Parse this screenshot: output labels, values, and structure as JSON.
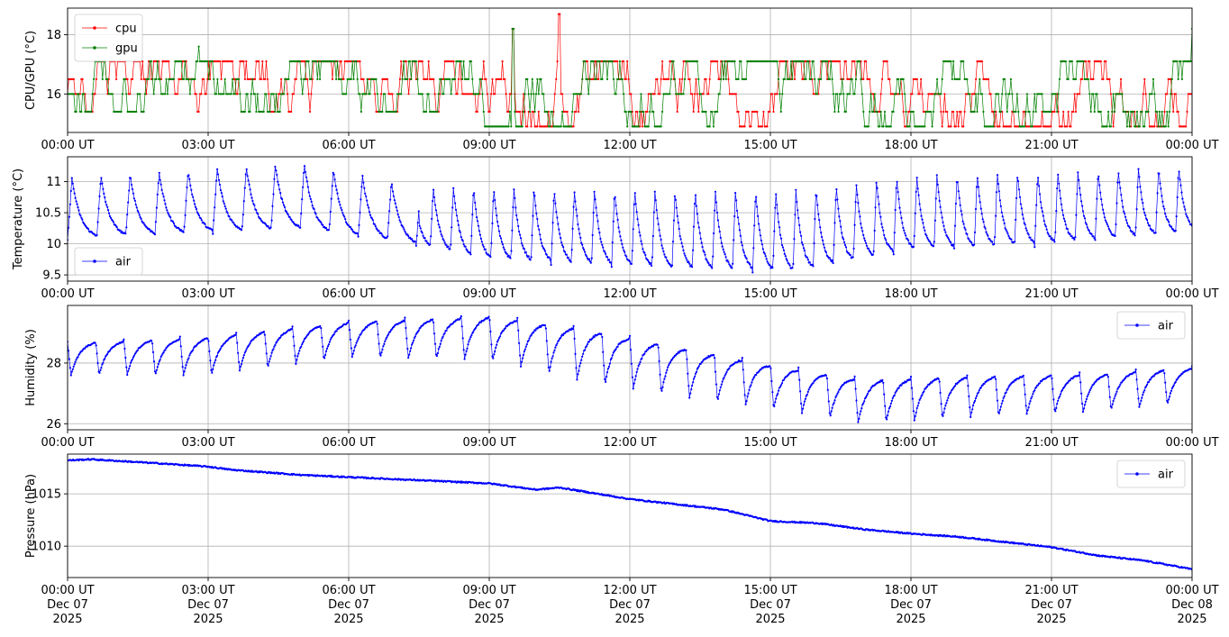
{
  "chart_data": [
    {
      "type": "line",
      "ylabel": "CPU/GPU (°C)",
      "ylim": [
        14.7,
        18.9
      ],
      "yticks": [
        16,
        18
      ],
      "xlim_hours": [
        0,
        24
      ],
      "xtick_labels": [
        "00:00 UT",
        "03:00 UT",
        "06:00 UT",
        "09:00 UT",
        "12:00 UT",
        "15:00 UT",
        "18:00 UT",
        "21:00 UT",
        "00:00 UT"
      ],
      "grid": true,
      "legend": "upper-left",
      "series": [
        {
          "name": "cpu",
          "color": "#ff0000",
          "pattern": "steps",
          "levels": [
            14.9,
            15.4,
            16.0,
            16.5,
            17.1
          ],
          "spikes": [
            [
              9.5,
              18.2
            ],
            [
              10.5,
              18.7
            ]
          ]
        },
        {
          "name": "gpu",
          "color": "#008000",
          "pattern": "steps",
          "levels": [
            14.9,
            15.4,
            16.0,
            16.5,
            17.1
          ],
          "spikes": [
            [
              2.8,
              17.6
            ],
            [
              9.5,
              18.2
            ],
            [
              24.0,
              18.2
            ]
          ]
        }
      ]
    },
    {
      "type": "line",
      "ylabel": "Temperature (°C)",
      "ylim": [
        9.4,
        11.4
      ],
      "yticks": [
        9.5,
        10.0,
        10.5,
        11.0
      ],
      "xlim_hours": [
        0,
        24
      ],
      "xtick_labels": [
        "00:00 UT",
        "03:00 UT",
        "06:00 UT",
        "09:00 UT",
        "12:00 UT",
        "15:00 UT",
        "18:00 UT",
        "21:00 UT",
        "00:00 UT"
      ],
      "grid": true,
      "legend": "lower-left",
      "series": [
        {
          "name": "air",
          "color": "#0000ff",
          "pattern": "sawtooth",
          "cycles_per_hour": 1.0,
          "min_start": 10.05,
          "max_start": 11.1,
          "anchors": [
            [
              0,
              10.05,
              11.05
            ],
            [
              5,
              10.2,
              11.3
            ],
            [
              7.5,
              9.95,
              10.9
            ],
            [
              9,
              9.7,
              10.9
            ],
            [
              13,
              9.55,
              10.85
            ],
            [
              15.5,
              9.5,
              10.85
            ],
            [
              18,
              9.85,
              11.1
            ],
            [
              21,
              9.95,
              11.15
            ],
            [
              24,
              10.15,
              11.25
            ]
          ]
        }
      ]
    },
    {
      "type": "line",
      "ylabel": "Humidity (%)",
      "ylim": [
        25.8,
        29.9
      ],
      "yticks": [
        26,
        28
      ],
      "xlim_hours": [
        0,
        24
      ],
      "xtick_labels": [
        "00:00 UT",
        "03:00 UT",
        "06:00 UT",
        "09:00 UT",
        "12:00 UT",
        "15:00 UT",
        "18:00 UT",
        "21:00 UT",
        "00:00 UT"
      ],
      "grid": true,
      "legend": "upper-right",
      "series": [
        {
          "name": "air",
          "color": "#0000ff",
          "pattern": "sawtooth-inverse",
          "anchors": [
            [
              0,
              27.6,
              28.7
            ],
            [
              3,
              27.6,
              28.9
            ],
            [
              6,
              28.2,
              29.4
            ],
            [
              9,
              28.1,
              29.6
            ],
            [
              11,
              27.4,
              29.2
            ],
            [
              13,
              26.9,
              28.6
            ],
            [
              15,
              26.5,
              28.0
            ],
            [
              17,
              26.0,
              27.5
            ],
            [
              19,
              26.2,
              27.6
            ],
            [
              22,
              26.4,
              27.7
            ],
            [
              24,
              26.7,
              27.9
            ]
          ]
        }
      ]
    },
    {
      "type": "line",
      "ylabel": "Pressure (hPa)",
      "ylim": [
        1007.0,
        1018.8
      ],
      "yticks": [
        1010,
        1015
      ],
      "xlim_hours": [
        0,
        24
      ],
      "xtick_labels": [
        [
          "00:00 UT",
          "Dec 07",
          "2025"
        ],
        [
          "03:00 UT",
          "Dec 07",
          "2025"
        ],
        [
          "06:00 UT",
          "Dec 07",
          "2025"
        ],
        [
          "09:00 UT",
          "Dec 07",
          "2025"
        ],
        [
          "12:00 UT",
          "Dec 07",
          "2025"
        ],
        [
          "15:00 UT",
          "Dec 07",
          "2025"
        ],
        [
          "18:00 UT",
          "Dec 07",
          "2025"
        ],
        [
          "21:00 UT",
          "Dec 07",
          "2025"
        ],
        [
          "00:00 UT",
          "Dec 08",
          "2025"
        ]
      ],
      "grid": true,
      "legend": "upper-right",
      "series": [
        {
          "name": "air",
          "color": "#0000ff",
          "pattern": "smooth",
          "anchors": [
            [
              0,
              1018.2
            ],
            [
              0.5,
              1018.3
            ],
            [
              2,
              1017.9
            ],
            [
              3,
              1017.6
            ],
            [
              3.5,
              1017.3
            ],
            [
              5,
              1016.8
            ],
            [
              7,
              1016.4
            ],
            [
              9,
              1016.0
            ],
            [
              10,
              1015.4
            ],
            [
              10.5,
              1015.6
            ],
            [
              12,
              1014.5
            ],
            [
              13,
              1014.0
            ],
            [
              14,
              1013.5
            ],
            [
              15,
              1012.4
            ],
            [
              16,
              1012.2
            ],
            [
              17,
              1011.6
            ],
            [
              18,
              1011.2
            ],
            [
              19,
              1010.9
            ],
            [
              21,
              1009.9
            ],
            [
              22,
              1009.1
            ],
            [
              23,
              1008.6
            ],
            [
              24,
              1007.8
            ]
          ]
        }
      ]
    }
  ]
}
